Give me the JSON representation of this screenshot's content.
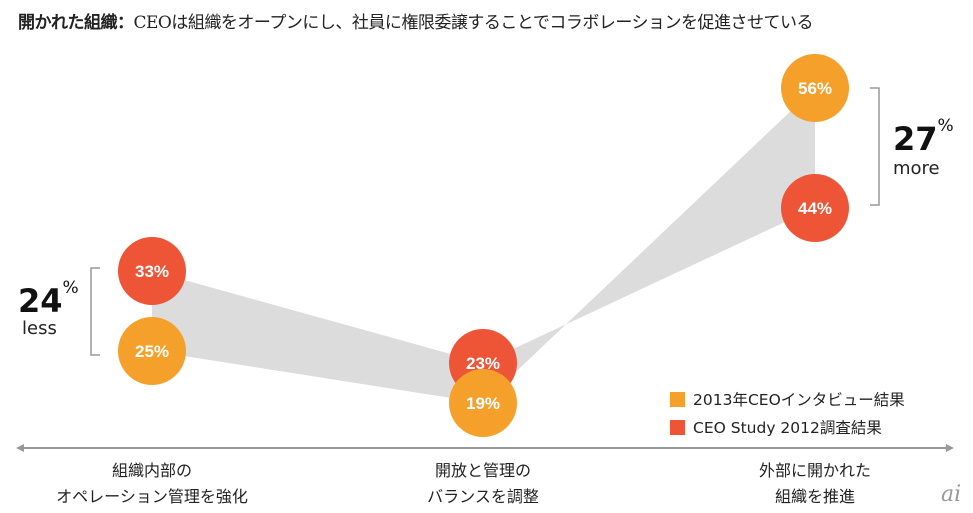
{
  "title": {
    "bold": "開かれた組織：",
    "rest": "CEOは組織をオープンにし、社員に権限委譲することでコラボレーションを促進させている"
  },
  "chart_data": {
    "type": "line",
    "title": "開かれた組織：CEOは組織をオープンにし、社員に権限委譲することでコラボレーションを促進させている",
    "categories": [
      "組織内部のオペレーション管理を強化",
      "開放と管理のバランスを調整",
      "外部に開かれた組織を推進"
    ],
    "category_lines": [
      [
        "組織内部の",
        "オペレーション管理を強化"
      ],
      [
        "開放と管理の",
        "バランスを調整"
      ],
      [
        "外部に開かれた",
        "組織を推進"
      ]
    ],
    "series": [
      {
        "name": "2013年CEOインタビュー結果",
        "color": "#f5a02a",
        "values": [
          25,
          19,
          56
        ],
        "labels": [
          "25%",
          "19%",
          "56%"
        ]
      },
      {
        "name": "CEO Study 2012調査結果",
        "color": "#ee5436",
        "values": [
          33,
          23,
          44
        ],
        "labels": [
          "33%",
          "23%",
          "44%"
        ]
      }
    ],
    "legend": "bottom-right",
    "annotations": [
      {
        "value": "24",
        "unit": "%",
        "text": "less",
        "category": 0
      },
      {
        "value": "27",
        "unit": "%",
        "text": "more",
        "category": 2
      }
    ]
  },
  "logo": "ai"
}
